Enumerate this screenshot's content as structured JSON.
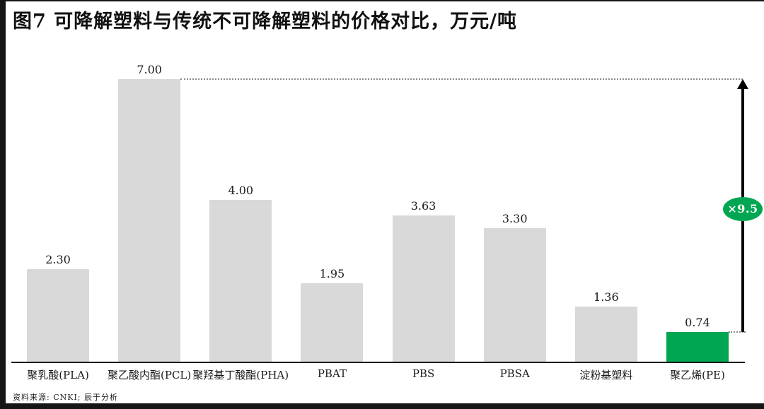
{
  "header": {
    "title": "图7 可降解塑料与传统不可降解塑料的价格对比，万元/吨"
  },
  "footer": {
    "source_note": "资料来源: CNKI; 辰于分析"
  },
  "chart_data": {
    "type": "bar",
    "title": "图7 可降解塑料与传统不可降解塑料的价格对比，万元/吨",
    "unit": "万元/吨",
    "categories": [
      "聚乳酸(PLA)",
      "聚乙酸内酯(PCL)",
      "聚羟基丁酸酯(PHA)",
      "PBAT",
      "PBS",
      "PBSA",
      "淀粉基塑料",
      "聚乙烯(PE)"
    ],
    "values": [
      2.3,
      7.0,
      4.0,
      1.95,
      3.63,
      3.3,
      1.36,
      0.74
    ],
    "value_labels": [
      "2.30",
      "7.00",
      "4.00",
      "1.95",
      "3.63",
      "3.30",
      "1.36",
      "0.74"
    ],
    "xlabel": "",
    "ylabel": "",
    "ylim": [
      0,
      7.0
    ],
    "grid": false,
    "legend": "none",
    "bar_color_default": "#D9D9D9",
    "bar_color_highlight": "#00A651",
    "highlight_index": 7,
    "reference_line": {
      "value": 7.0,
      "style": "dotted"
    },
    "annotation": {
      "label": "×9.5",
      "badge_color": "#00A651",
      "text_color": "#FFFFFF",
      "from_value": 0.74,
      "to_value": 7.0
    }
  }
}
